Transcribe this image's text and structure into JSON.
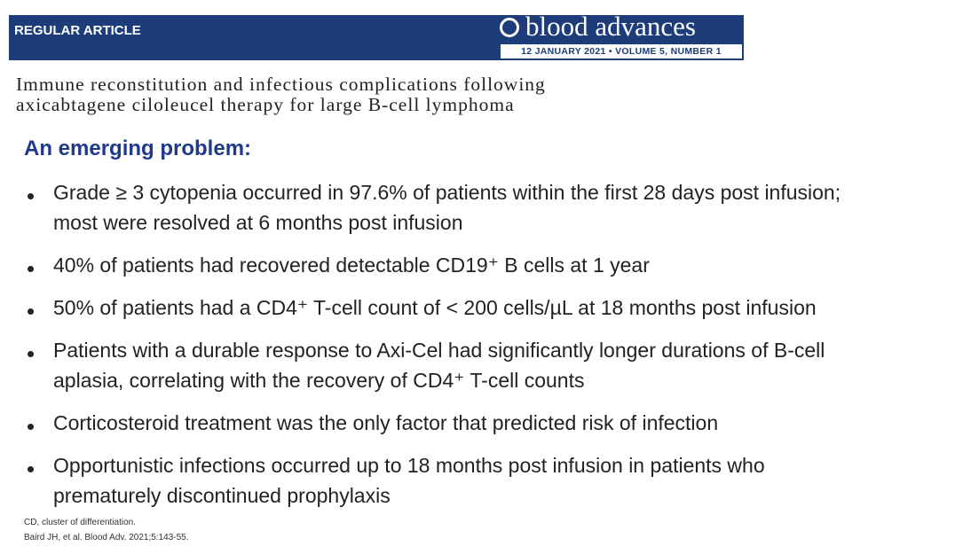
{
  "header": {
    "label": "REGULAR ARTICLE",
    "journal": "blood advances",
    "issue": "12 JANUARY 2021 • VOLUME 5, NUMBER 1",
    "article_title": [
      "Immune reconstitution and infectious complications following",
      "axicabtagene ciloleucel therapy for large B-cell lymphoma"
    ]
  },
  "heading": "An emerging problem:",
  "bullets": [
    [
      "Grade ≥ 3 cytopenia occurred in 97.6% of patients within the first 28 days post infusion;",
      "most were resolved at 6 months post infusion"
    ],
    [
      "40% of patients had recovered detectable CD19⁺ B cells at 1 year"
    ],
    [
      "50% of patients had a CD4⁺ T-cell count of < 200 cells/µL at 18 months post infusion"
    ],
    [
      "Patients with a durable response to Axi-Cel had significantly longer durations of B-cell",
      "aplasia, correlating with the recovery of CD4⁺ T-cell counts"
    ],
    [
      "Corticosteroid treatment was the only factor that predicted risk of infection"
    ],
    [
      "Opportunistic infections occurred up to 18 months post infusion in patients who",
      "prematurely discontinued prophylaxis"
    ]
  ],
  "footnotes": [
    "CD, cluster of differentiation.",
    "Baird JH, et al. Blood Adv. 2021;5:143-55."
  ]
}
